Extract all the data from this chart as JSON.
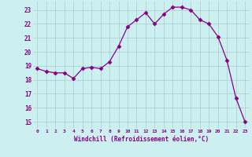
{
  "x": [
    0,
    1,
    2,
    3,
    4,
    5,
    6,
    7,
    8,
    9,
    10,
    11,
    12,
    13,
    14,
    15,
    16,
    17,
    18,
    19,
    20,
    21,
    22,
    23
  ],
  "y": [
    18.8,
    18.6,
    18.5,
    18.5,
    18.1,
    18.8,
    18.9,
    18.8,
    19.3,
    20.4,
    21.8,
    22.3,
    22.8,
    22.0,
    22.7,
    23.2,
    23.2,
    23.0,
    22.3,
    22.0,
    21.1,
    19.4,
    16.7,
    15.0
  ],
  "line_color": "#880088",
  "marker": "D",
  "marker_size": 2.5,
  "bg_color": "#ccf0f0",
  "grid_color": "#aacccc",
  "xlabel": "Windchill (Refroidissement éolien,°C)",
  "xlabel_color": "#880088",
  "tick_color": "#880088",
  "ylabel_ticks": [
    15,
    16,
    17,
    18,
    19,
    20,
    21,
    22,
    23
  ],
  "xtick_labels": [
    "0",
    "1",
    "2",
    "3",
    "4",
    "5",
    "6",
    "7",
    "8",
    "9",
    "10",
    "11",
    "12",
    "13",
    "14",
    "15",
    "16",
    "17",
    "18",
    "19",
    "20",
    "21",
    "22",
    "23"
  ],
  "ylim": [
    14.5,
    23.6
  ],
  "xlim": [
    -0.5,
    23.5
  ]
}
